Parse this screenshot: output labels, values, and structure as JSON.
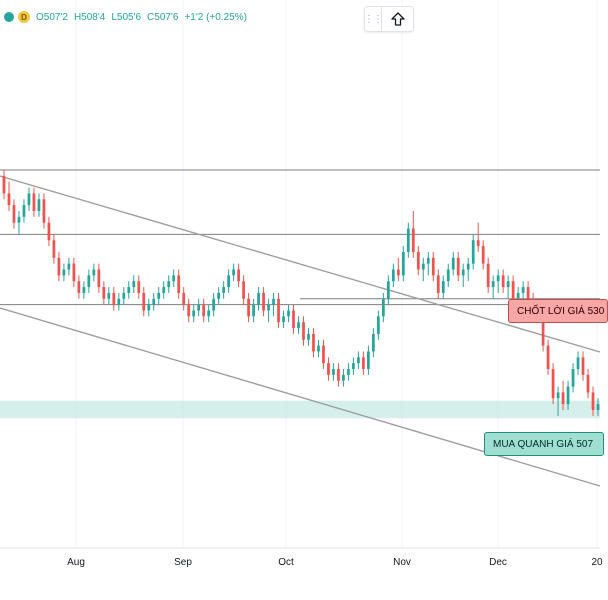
{
  "header": {
    "interval": "D",
    "open": "O507'2",
    "high": "H508'4",
    "low": "L505'6",
    "close": "C507'6",
    "change": "+1'2 (+0.25%)"
  },
  "colors": {
    "up": "#26a69a",
    "down": "#ef5350",
    "trendline": "#9e9e9e",
    "zone": "#b2e3dc",
    "sell_callout": "#f8a6a6",
    "buy_callout": "#9fdfd2"
  },
  "icons": [
    "status-dot-icon",
    "interval-badge-icon",
    "drag-handle-icon",
    "arrow-up-icon"
  ],
  "annotations": {
    "sell": "CHỐT LỜI GIÁ 530",
    "buy": "MUA QUANH GIÁ 507"
  },
  "chart_data": {
    "type": "candlestick",
    "title": "",
    "xlabel": "",
    "ylabel": "",
    "x_tick_labels": [
      "Aug",
      "Sep",
      "Oct",
      "Nov",
      "Dec",
      "20"
    ],
    "ylim": [
      490,
      560
    ],
    "horizontal_levels": [
      548,
      537,
      526,
      525
    ],
    "buy_zone": [
      505.6,
      508.6
    ],
    "grid": false,
    "legend": "none",
    "series": [
      {
        "values": [
          [
            547,
            548,
            543,
            544
          ],
          [
            544,
            546,
            541,
            542
          ],
          [
            542,
            543,
            538,
            539
          ],
          [
            539,
            541,
            537,
            540
          ],
          [
            540,
            543,
            539,
            542
          ],
          [
            542,
            545,
            541,
            544
          ],
          [
            544,
            545,
            540,
            541
          ],
          [
            541,
            544,
            540,
            543
          ],
          [
            543,
            544,
            538,
            539
          ],
          [
            539,
            540,
            535,
            536
          ],
          [
            536,
            537,
            532,
            533
          ],
          [
            533,
            534,
            529,
            530
          ],
          [
            530,
            532,
            529,
            531
          ],
          [
            531,
            533,
            530,
            532
          ],
          [
            532,
            533,
            528,
            529
          ],
          [
            529,
            530,
            526,
            527
          ],
          [
            527,
            529,
            526,
            528
          ],
          [
            528,
            531,
            527,
            530
          ],
          [
            530,
            532,
            529,
            531
          ],
          [
            531,
            532,
            527,
            528
          ],
          [
            528,
            529,
            525,
            526
          ],
          [
            526,
            528,
            525,
            527
          ],
          [
            527,
            528,
            524,
            525
          ],
          [
            525,
            527,
            524,
            526
          ],
          [
            526,
            528,
            525,
            527
          ],
          [
            527,
            529,
            526,
            528
          ],
          [
            528,
            530,
            527,
            529
          ],
          [
            529,
            530,
            526,
            527
          ],
          [
            527,
            528,
            523,
            524
          ],
          [
            524,
            526,
            523,
            525
          ],
          [
            525,
            527,
            524,
            526
          ],
          [
            526,
            528,
            525,
            527
          ],
          [
            527,
            529,
            526,
            528
          ],
          [
            528,
            530,
            527,
            529
          ],
          [
            529,
            531,
            528,
            530
          ],
          [
            530,
            531,
            526,
            527
          ],
          [
            527,
            528,
            524,
            525
          ],
          [
            525,
            526,
            522,
            523
          ],
          [
            523,
            525,
            522,
            524
          ],
          [
            524,
            526,
            523,
            525
          ],
          [
            525,
            526,
            522,
            523
          ],
          [
            523,
            525,
            522,
            524
          ],
          [
            524,
            527,
            523,
            526
          ],
          [
            526,
            528,
            525,
            527
          ],
          [
            527,
            529,
            526,
            528
          ],
          [
            528,
            531,
            527,
            530
          ],
          [
            530,
            532,
            529,
            531
          ],
          [
            531,
            532,
            528,
            529
          ],
          [
            529,
            530,
            525,
            526
          ],
          [
            526,
            527,
            522,
            523
          ],
          [
            523,
            526,
            522,
            525
          ],
          [
            525,
            528,
            524,
            527
          ],
          [
            527,
            528,
            523,
            524
          ],
          [
            524,
            526,
            522,
            525
          ],
          [
            525,
            527,
            523,
            526
          ],
          [
            526,
            527,
            521,
            522
          ],
          [
            522,
            524,
            521,
            523
          ],
          [
            523,
            525,
            522,
            524
          ],
          [
            524,
            525,
            520,
            521
          ],
          [
            521,
            523,
            520,
            522
          ],
          [
            522,
            523,
            518,
            519
          ],
          [
            519,
            521,
            518,
            520
          ],
          [
            520,
            521,
            516,
            517
          ],
          [
            517,
            519,
            516,
            518
          ],
          [
            518,
            519,
            514,
            515
          ],
          [
            515,
            516,
            512,
            513
          ],
          [
            513,
            515,
            512,
            514
          ],
          [
            514,
            515,
            511,
            512
          ],
          [
            512,
            514,
            511,
            513
          ],
          [
            513,
            515,
            512,
            514
          ],
          [
            514,
            516,
            513,
            515
          ],
          [
            515,
            517,
            514,
            516
          ],
          [
            516,
            517,
            513,
            514
          ],
          [
            514,
            518,
            513,
            517
          ],
          [
            517,
            521,
            516,
            520
          ],
          [
            520,
            524,
            519,
            523
          ],
          [
            523,
            527,
            522,
            526
          ],
          [
            526,
            530,
            525,
            529
          ],
          [
            529,
            532,
            528,
            531
          ],
          [
            531,
            533,
            529,
            530
          ],
          [
            530,
            535,
            529,
            534
          ],
          [
            534,
            539,
            533,
            538
          ],
          [
            538,
            541,
            533,
            534
          ],
          [
            534,
            535,
            530,
            531
          ],
          [
            531,
            533,
            529,
            532
          ],
          [
            532,
            534,
            530,
            533
          ],
          [
            533,
            534,
            529,
            530
          ],
          [
            530,
            531,
            526,
            527
          ],
          [
            527,
            530,
            526,
            529
          ],
          [
            529,
            532,
            528,
            531
          ],
          [
            531,
            534,
            530,
            533
          ],
          [
            533,
            534,
            529,
            530
          ],
          [
            530,
            532,
            528,
            531
          ],
          [
            531,
            533,
            529,
            532
          ],
          [
            532,
            537,
            531,
            536
          ],
          [
            536,
            539,
            534,
            535
          ],
          [
            535,
            536,
            531,
            532
          ],
          [
            532,
            533,
            527,
            528
          ],
          [
            528,
            530,
            526,
            529
          ],
          [
            529,
            531,
            527,
            530
          ],
          [
            530,
            531,
            527,
            528
          ],
          [
            528,
            530,
            526,
            529
          ],
          [
            529,
            530,
            525,
            526
          ],
          [
            526,
            528,
            525,
            527
          ],
          [
            527,
            529,
            525,
            528
          ],
          [
            528,
            529,
            524,
            525
          ],
          [
            525,
            527,
            523,
            524
          ],
          [
            524,
            525,
            522,
            523
          ],
          [
            523,
            524,
            517,
            518
          ],
          [
            518,
            519,
            513,
            514
          ],
          [
            514,
            515,
            508,
            509
          ],
          [
            509,
            511,
            506,
            510
          ],
          [
            510,
            512,
            507,
            508
          ],
          [
            508,
            512,
            507,
            511
          ],
          [
            511,
            515,
            510,
            514
          ],
          [
            514,
            517,
            513,
            516
          ],
          [
            516,
            517,
            512,
            513
          ],
          [
            513,
            514,
            509,
            510
          ],
          [
            510,
            511,
            506,
            507
          ],
          [
            507,
            509,
            506,
            508
          ]
        ]
      }
    ]
  }
}
